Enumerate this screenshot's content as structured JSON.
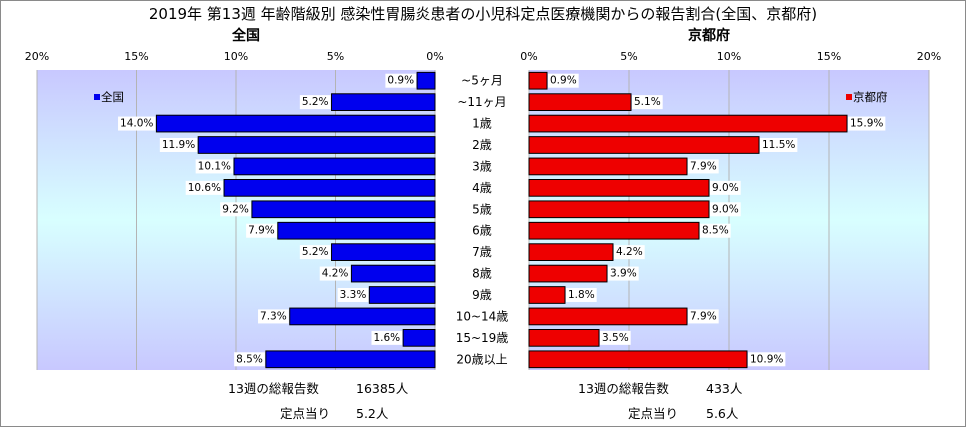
{
  "title": "2019年 第13週 年齢階級別 感染性胃腸炎患者の小児科定点医療機関からの報告割合(全国、京都府)",
  "colors": {
    "national_bar": "#0000ee",
    "kyoto_bar": "#ee0000",
    "plot_bg_top": "#c8c8ff",
    "plot_bg_mid": "#d8ffff"
  },
  "chart_data": [
    {
      "type": "bar",
      "orientation": "horizontal",
      "direction": "right-to-left",
      "title": "全国",
      "legend": "全国",
      "legend_position": "top-left",
      "xlim": [
        0,
        20
      ],
      "x_ticks": [
        "20%",
        "15%",
        "10%",
        "5%",
        "0%"
      ],
      "grid": true,
      "categories": [
        "~5ヶ月",
        "~11ヶ月",
        "1歳",
        "2歳",
        "3歳",
        "4歳",
        "5歳",
        "6歳",
        "7歳",
        "8歳",
        "9歳",
        "10~14歳",
        "15~19歳",
        "20歳以上"
      ],
      "values": [
        0.9,
        5.2,
        14.0,
        11.9,
        10.1,
        10.6,
        9.2,
        7.9,
        5.2,
        4.2,
        3.3,
        7.3,
        1.6,
        8.5
      ],
      "labels": [
        "0.9%",
        "5.2%",
        "14.0%",
        "11.9%",
        "10.1%",
        "10.6%",
        "9.2%",
        "7.9%",
        "5.2%",
        "4.2%",
        "3.3%",
        "7.3%",
        "1.6%",
        "8.5%"
      ]
    },
    {
      "type": "bar",
      "orientation": "horizontal",
      "direction": "left-to-right",
      "title": "京都府",
      "legend": "京都府",
      "legend_position": "top-right",
      "xlim": [
        0,
        20
      ],
      "x_ticks": [
        "0%",
        "5%",
        "10%",
        "15%",
        "20%"
      ],
      "grid": true,
      "categories": [
        "~5ヶ月",
        "~11ヶ月",
        "1歳",
        "2歳",
        "3歳",
        "4歳",
        "5歳",
        "6歳",
        "7歳",
        "8歳",
        "9歳",
        "10~14歳",
        "15~19歳",
        "20歳以上"
      ],
      "values": [
        0.9,
        5.1,
        15.9,
        11.5,
        7.9,
        9.0,
        9.0,
        8.5,
        4.2,
        3.9,
        1.8,
        7.9,
        3.5,
        10.9
      ],
      "labels": [
        "0.9%",
        "5.1%",
        "15.9%",
        "11.5%",
        "7.9%",
        "9.0%",
        "9.0%",
        "8.5%",
        "4.2%",
        "3.9%",
        "1.8%",
        "7.9%",
        "3.5%",
        "10.9%"
      ]
    }
  ],
  "footer": {
    "national": {
      "total_label": "13週の総報告数",
      "total_value": "16385人",
      "per_label": "定点当り",
      "per_value": "5.2人"
    },
    "kyoto": {
      "total_label": "13週の総報告数",
      "total_value": "433人",
      "per_label": "定点当り",
      "per_value": "5.6人"
    }
  }
}
